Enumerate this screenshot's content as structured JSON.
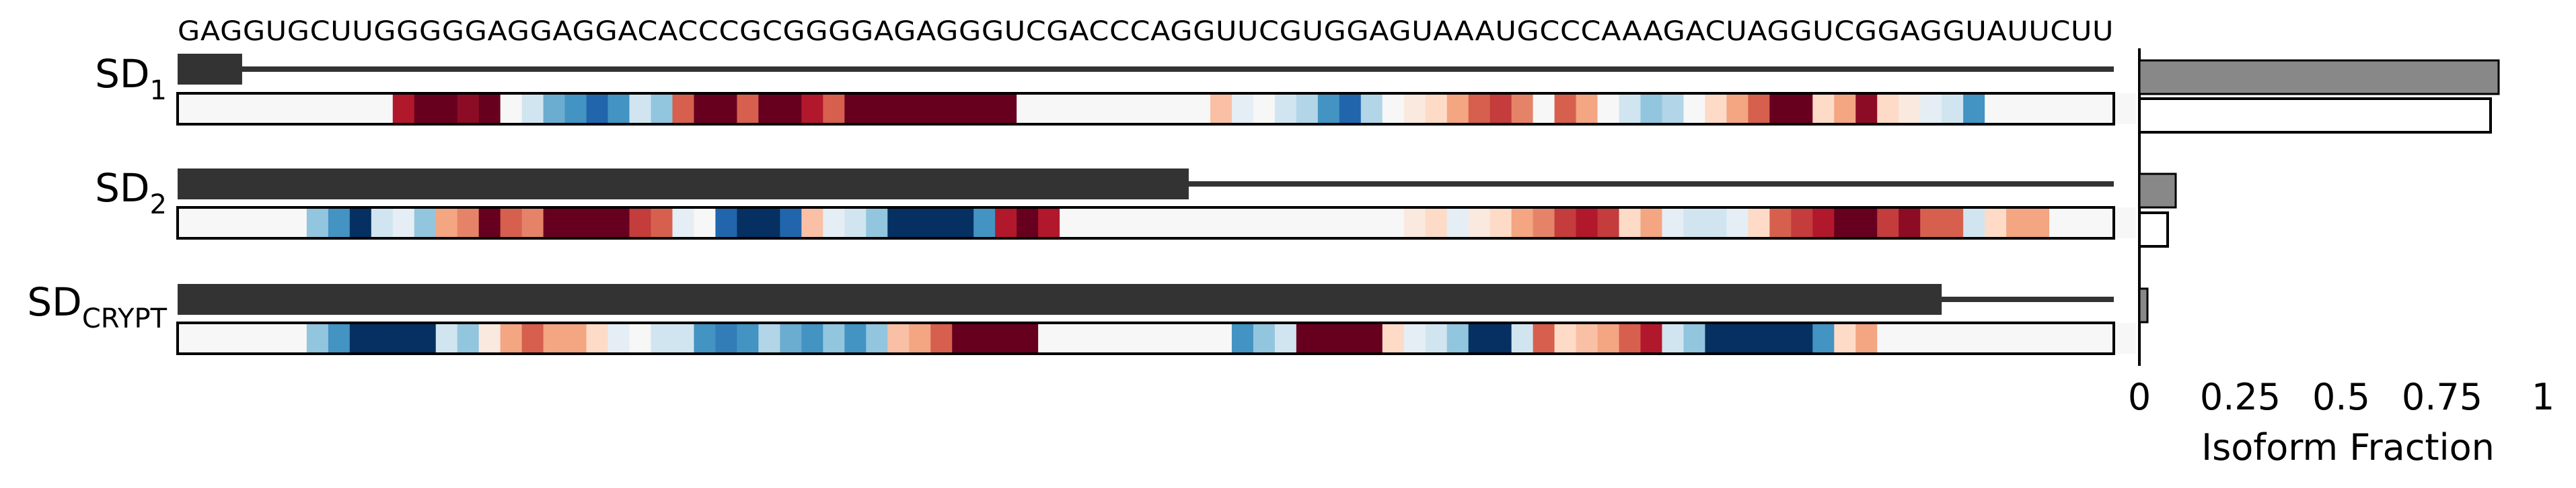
{
  "chart_data": {
    "type": "bar",
    "sequence": "GAGGUGCUUGGGGGAGGAGGACACCCGCGGGGAGAGGGUCGACCCAGGUUCGUGGAGUAAAUGCCCAAAGACUAGGUCGGAGGUAUUCUU",
    "rows": [
      {
        "label_main": "SD",
        "label_sub": "1",
        "splice_position": 3,
        "heatmap": [
          0,
          0,
          0,
          0,
          0,
          0,
          0,
          0,
          0,
          0,
          4,
          5,
          5,
          4.5,
          5,
          0,
          -1,
          -2.5,
          -3,
          -4,
          -3,
          -1,
          -2,
          3,
          5,
          5,
          3,
          5,
          5,
          4,
          3,
          5,
          5,
          5,
          5,
          5,
          5,
          5,
          5,
          0,
          0,
          0,
          0,
          0,
          0,
          0,
          0,
          0,
          1.5,
          -0.5,
          0,
          -1,
          -1.5,
          -3,
          -4,
          -1.5,
          0,
          0.5,
          1,
          2,
          3,
          3.5,
          2.5,
          0,
          3,
          2,
          0,
          -1,
          -2,
          -1.5,
          0,
          1,
          2,
          3,
          5,
          5,
          1,
          2,
          4.5,
          1,
          0.5,
          -0.5,
          -1,
          -3,
          0,
          0,
          0,
          0,
          0,
          0,
          0
        ]
      },
      {
        "label_main": "SD",
        "label_sub": "2",
        "splice_position": 47,
        "heatmap": [
          0,
          0,
          0,
          0,
          0,
          0,
          -2,
          -3,
          -5,
          -1,
          -0.5,
          -2,
          2,
          2.5,
          5,
          3,
          2.5,
          5,
          5,
          5,
          5,
          3.5,
          3,
          -0.5,
          0,
          -4,
          -5,
          -5,
          -4,
          1.5,
          -0.5,
          -1,
          -2,
          -5,
          -5,
          -5,
          -5,
          -3,
          4,
          5,
          4,
          0,
          0,
          0,
          0,
          0,
          0,
          0,
          0,
          0,
          0,
          0,
          0,
          0,
          0,
          0,
          0,
          0.5,
          1,
          -0.5,
          0.5,
          1,
          2,
          2.5,
          3.5,
          4,
          3.5,
          1,
          2,
          -0.5,
          -1,
          -1,
          -0.5,
          1,
          3,
          3.5,
          4,
          5,
          5,
          3.5,
          4.5,
          3,
          3,
          -1,
          1,
          2,
          2,
          0,
          0,
          0,
          0
        ]
      },
      {
        "label_main": "SD",
        "label_sub": "CRYPT",
        "splice_position": 82,
        "heatmap": [
          0,
          0,
          0,
          0,
          0,
          0,
          -2,
          -3,
          -5,
          -5,
          -5,
          -5,
          -1,
          -2,
          0.5,
          2,
          3,
          2,
          2,
          1,
          -0.5,
          0,
          -1,
          -1,
          -3,
          -3.5,
          -3,
          -1.5,
          -2.5,
          -3,
          -2,
          -3,
          -2,
          1.5,
          2,
          3,
          5,
          5,
          5,
          5,
          0,
          0,
          0,
          0,
          0,
          0,
          0,
          0,
          0,
          -3,
          -2,
          -1,
          5,
          5,
          5,
          5,
          1,
          -0.5,
          -1,
          -2,
          -5,
          -5,
          -1,
          3,
          1,
          1.5,
          2,
          3,
          4,
          -1,
          -2,
          -5,
          -5,
          -5,
          -5,
          -5,
          -3,
          1,
          2,
          0,
          0,
          0,
          0,
          0,
          0,
          0,
          0,
          0,
          0,
          0,
          0
        ]
      }
    ],
    "bars": {
      "series": [
        {
          "name": "",
          "values": [
            0.89,
            0.09,
            0.02
          ],
          "color": "#888888"
        },
        {
          "name": "",
          "values": [
            0.87,
            0.07,
            0.0
          ],
          "color": "#ffffff"
        }
      ],
      "xlim": [
        0,
        1
      ],
      "xticks": [
        "0",
        "0.25",
        "0.5",
        "0.75",
        "1"
      ],
      "xlabel": "Isoform Fraction"
    },
    "colors": {
      "dark_bar": "#333333",
      "heat_neg": "#053061",
      "heat_pos": "#67001f",
      "heat_zero": "#f7f7f7"
    }
  }
}
